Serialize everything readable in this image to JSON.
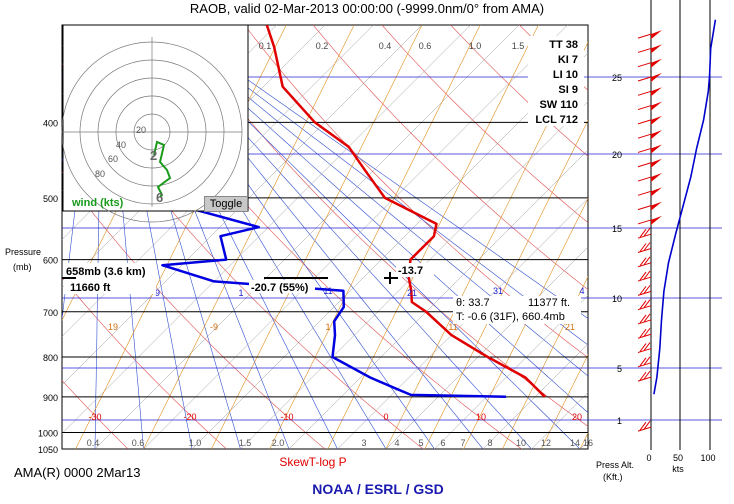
{
  "header": {
    "title": "RAOB, valid 02-Mar-2013 00:00:00 (-9999.0nm/0° from AMA)",
    "station_line": "AMA(R) 0000 2Mar13",
    "skewt_caption": "SkewT-log P",
    "credit": "NOAA / ESRL / GSD"
  },
  "hodograph": {
    "wind_label": "wind (kts)",
    "toggle_label": "Toggle",
    "ring_labels": [
      "20",
      "40",
      "60",
      "80"
    ],
    "wind_color": "#1a9a1a",
    "points": [
      [
        2,
        2.3
      ],
      [
        5,
        1.0
      ],
      [
        12,
        1.3
      ],
      [
        8,
        3.0
      ],
      [
        15,
        3.8
      ],
      [
        18,
        4.6
      ],
      [
        6,
        5.5
      ],
      [
        10,
        6.3
      ],
      [
        8,
        6.5
      ]
    ],
    "point_labels": [
      {
        "text": "2",
        "at": [
          2,
          2.3
        ]
      },
      {
        "text": "6",
        "at": [
          8,
          6.5
        ]
      }
    ]
  },
  "indices": [
    {
      "key": "TT",
      "value": "38"
    },
    {
      "key": "KI",
      "value": "7"
    },
    {
      "key": "LI",
      "value": "10"
    },
    {
      "key": "SI",
      "value": "9"
    },
    {
      "key": "SW",
      "value": "110"
    },
    {
      "key": "LCL",
      "value": "712"
    }
  ],
  "annotations": {
    "level_label": "658mb (3.6 km)",
    "height_label": "11660 ft",
    "dewpoint_label": "-20.7 (55%)",
    "temp_label": "-13.7",
    "theta_label": "θ: 33.7",
    "alt_label": "11377 ft.",
    "t_label": "T: -0.6 (31F), 660.4mb"
  },
  "skewt_labels": {
    "pressure_axis": "Pressure",
    "pressure_unit": "(mb)",
    "mixing_ratio_top": [
      "0.1",
      "0.2",
      "0.4",
      "0.6",
      "1.0",
      "1.5",
      "2"
    ],
    "mixing_ratio_bottom": [
      "0.4",
      "0.6",
      "1.0",
      "1.5",
      "2.0",
      "3",
      "4",
      "5",
      "6",
      "7",
      "8",
      "10",
      "12",
      "14",
      "16"
    ],
    "isotherm_labels": [
      "-30",
      "-20",
      "-10",
      "0",
      "10",
      "20"
    ],
    "midlabels_blue": [
      "-9",
      "1",
      "11",
      "21",
      "31",
      "4"
    ],
    "midlabels_orange": [
      "19",
      "-9",
      "1",
      "11",
      "21"
    ]
  },
  "wind_panel": {
    "alt_axis_title": "Press Alt.",
    "alt_axis_unit": "(Kft.)",
    "speed_axis_unit": "kts",
    "speed_ticks": [
      "0",
      "50",
      "100"
    ],
    "speed_profile": [
      {
        "alt": 2.8,
        "kts": 5
      },
      {
        "alt": 4,
        "kts": 10
      },
      {
        "alt": 6,
        "kts": 15
      },
      {
        "alt": 8,
        "kts": 18
      },
      {
        "alt": 10,
        "kts": 22
      },
      {
        "alt": 12,
        "kts": 30
      },
      {
        "alt": 14,
        "kts": 42
      },
      {
        "alt": 16,
        "kts": 55
      },
      {
        "alt": 18,
        "kts": 68
      },
      {
        "alt": 20,
        "kts": 78
      },
      {
        "alt": 22,
        "kts": 90
      },
      {
        "alt": 24,
        "kts": 98
      },
      {
        "alt": 25,
        "kts": 100
      },
      {
        "alt": 27,
        "kts": 102
      },
      {
        "alt": 29,
        "kts": 110
      }
    ]
  },
  "chart_data": [
    {
      "type": "line",
      "title": "RAOB, valid 02-Mar-2013 00:00:00 (-9999.0nm/0° from AMA)",
      "xlabel": "SkewT-log P",
      "ylabel": "Pressure (mb)",
      "y_ticks": [
        "400",
        "500",
        "600",
        "700",
        "800",
        "900",
        "1000",
        "1050"
      ],
      "ylim": [
        1050,
        300
      ],
      "y_scale": "log",
      "grid": true,
      "series": [
        {
          "name": "temperature",
          "color": "#e00000",
          "points": [
            {
              "p": 900,
              "t": 11
            },
            {
              "p": 850,
              "t": 7
            },
            {
              "p": 800,
              "t": 1
            },
            {
              "p": 750,
              "t": -5
            },
            {
              "p": 700,
              "t": -10
            },
            {
              "p": 680,
              "t": -12.5
            },
            {
              "p": 658,
              "t": -13.7
            },
            {
              "p": 630,
              "t": -15.5
            },
            {
              "p": 600,
              "t": -17
            },
            {
              "p": 560,
              "t": -17
            },
            {
              "p": 540,
              "t": -18
            },
            {
              "p": 500,
              "t": -26
            },
            {
              "p": 460,
              "t": -31
            },
            {
              "p": 430,
              "t": -35
            },
            {
              "p": 400,
              "t": -41
            },
            {
              "p": 360,
              "t": -48
            },
            {
              "p": 320,
              "t": -53
            },
            {
              "p": 300,
              "t": -56
            }
          ]
        },
        {
          "name": "dewpoint",
          "color": "#0000e0",
          "points": [
            {
              "p": 900,
              "t": 7
            },
            {
              "p": 895,
              "t": -3
            },
            {
              "p": 880,
              "t": -5
            },
            {
              "p": 850,
              "t": -9
            },
            {
              "p": 800,
              "t": -15
            },
            {
              "p": 750,
              "t": -17
            },
            {
              "p": 720,
              "t": -18.5
            },
            {
              "p": 690,
              "t": -19
            },
            {
              "p": 658,
              "t": -20.7
            },
            {
              "p": 640,
              "t": -35
            },
            {
              "p": 610,
              "t": -42
            },
            {
              "p": 600,
              "t": -36
            },
            {
              "p": 560,
              "t": -39
            },
            {
              "p": 545,
              "t": -36
            },
            {
              "p": 500,
              "t": -50
            },
            {
              "p": 450,
              "t": -58
            },
            {
              "p": 400,
              "t": -63
            },
            {
              "p": 360,
              "t": -67
            },
            {
              "p": 300,
              "t": -76
            }
          ]
        }
      ],
      "annotations": [
        "658mb (3.6 km)",
        "11660 ft",
        "-20.7 (55%)",
        "-13.7"
      ]
    },
    {
      "type": "line",
      "title": "",
      "xlabel": "kts",
      "ylabel": "Press Alt. (Kft.)",
      "x_ticks": [
        "0",
        "50",
        "100"
      ],
      "y_ticks": [
        "1",
        "5",
        "10",
        "15",
        "20",
        "25"
      ],
      "xlim": [
        0,
        120
      ],
      "ylim": [
        0,
        30
      ],
      "series": [
        {
          "name": "wind speed",
          "color": "#0000cc",
          "x": [
            5,
            10,
            15,
            18,
            22,
            30,
            42,
            55,
            68,
            78,
            90,
            98,
            100,
            102,
            110
          ],
          "y": [
            2.8,
            4,
            6,
            8,
            10,
            12,
            14,
            16,
            18,
            20,
            22,
            24,
            25,
            27,
            29
          ]
        }
      ]
    }
  ]
}
